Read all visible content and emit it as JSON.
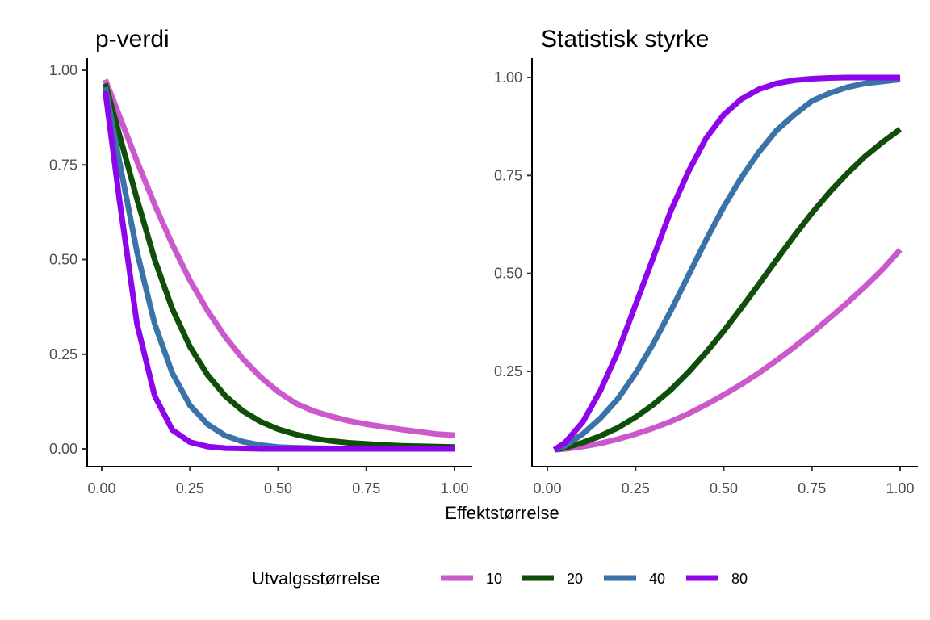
{
  "chart_data": [
    {
      "type": "line",
      "title": "p-verdi",
      "xlim": [
        0,
        1
      ],
      "ylim": [
        0,
        1
      ],
      "x_ticks": [
        "0.00",
        "0.25",
        "0.50",
        "0.75",
        "1.00"
      ],
      "y_ticks": [
        "0.00",
        "0.25",
        "0.50",
        "0.75",
        "1.00"
      ],
      "series": [
        {
          "name": "10",
          "color": "#CC59CC",
          "x": [
            0.01,
            0.05,
            0.1,
            0.15,
            0.2,
            0.25,
            0.3,
            0.35,
            0.4,
            0.45,
            0.5,
            0.55,
            0.6,
            0.65,
            0.7,
            0.75,
            0.8,
            0.85,
            0.9,
            0.95,
            1.0
          ],
          "values": [
            0.975,
            0.88,
            0.76,
            0.645,
            0.54,
            0.445,
            0.365,
            0.296,
            0.238,
            0.19,
            0.151,
            0.12,
            0.1,
            0.086,
            0.074,
            0.065,
            0.058,
            0.051,
            0.045,
            0.039,
            0.036
          ]
        },
        {
          "name": "20",
          "color": "#0F4F0A",
          "x": [
            0.01,
            0.05,
            0.1,
            0.15,
            0.2,
            0.25,
            0.3,
            0.35,
            0.4,
            0.45,
            0.5,
            0.55,
            0.6,
            0.65,
            0.7,
            0.75,
            0.8,
            0.85,
            0.9,
            0.95,
            1.0
          ],
          "values": [
            0.965,
            0.83,
            0.66,
            0.5,
            0.37,
            0.27,
            0.195,
            0.14,
            0.1,
            0.072,
            0.052,
            0.038,
            0.028,
            0.021,
            0.016,
            0.013,
            0.01,
            0.008,
            0.007,
            0.006,
            0.005
          ]
        },
        {
          "name": "40",
          "color": "#3A73A8",
          "x": [
            0.01,
            0.05,
            0.1,
            0.15,
            0.2,
            0.25,
            0.3,
            0.35,
            0.4,
            0.45,
            0.5,
            0.55,
            0.6,
            0.65,
            0.7,
            0.75,
            0.8,
            0.85,
            0.9,
            0.95,
            1.0
          ],
          "values": [
            0.955,
            0.76,
            0.52,
            0.33,
            0.2,
            0.115,
            0.065,
            0.035,
            0.019,
            0.01,
            0.005,
            0.003,
            0.002,
            0.001,
            0.001,
            0.0,
            0.0,
            0.0,
            0.0,
            0.0,
            0.0
          ]
        },
        {
          "name": "80",
          "color": "#8E05EB",
          "x": [
            0.01,
            0.05,
            0.1,
            0.15,
            0.2,
            0.25,
            0.3,
            0.35,
            0.4,
            0.45,
            0.5,
            0.55,
            0.6,
            0.65,
            0.7,
            0.75,
            0.8,
            0.85,
            0.9,
            0.95,
            1.0
          ],
          "values": [
            0.945,
            0.66,
            0.33,
            0.14,
            0.05,
            0.018,
            0.006,
            0.002,
            0.001,
            0.0,
            0.0,
            0.0,
            0.0,
            0.0,
            0.0,
            0.0,
            0.0,
            0.0,
            0.0,
            0.0,
            0.0
          ]
        }
      ]
    },
    {
      "type": "line",
      "title": "Statistisk styrke",
      "xlim": [
        0,
        1
      ],
      "ylim": [
        0.05,
        1
      ],
      "x_ticks": [
        "0.00",
        "0.25",
        "0.50",
        "0.75",
        "1.00"
      ],
      "y_ticks": [
        "0.25",
        "0.50",
        "0.75",
        "1.00"
      ],
      "series": [
        {
          "name": "10",
          "color": "#CC59CC",
          "x": [
            0.02,
            0.05,
            0.1,
            0.15,
            0.2,
            0.25,
            0.3,
            0.35,
            0.4,
            0.45,
            0.5,
            0.55,
            0.6,
            0.65,
            0.7,
            0.75,
            0.8,
            0.85,
            0.9,
            0.95,
            1.0
          ],
          "values": [
            0.05,
            0.052,
            0.058,
            0.066,
            0.077,
            0.09,
            0.105,
            0.122,
            0.142,
            0.165,
            0.19,
            0.217,
            0.246,
            0.278,
            0.312,
            0.348,
            0.386,
            0.425,
            0.466,
            0.51,
            0.56
          ]
        },
        {
          "name": "20",
          "color": "#0F4F0A",
          "x": [
            0.02,
            0.05,
            0.1,
            0.15,
            0.2,
            0.25,
            0.3,
            0.35,
            0.4,
            0.45,
            0.5,
            0.55,
            0.6,
            0.65,
            0.7,
            0.75,
            0.8,
            0.85,
            0.9,
            0.95,
            1.0
          ],
          "values": [
            0.05,
            0.055,
            0.068,
            0.085,
            0.106,
            0.133,
            0.165,
            0.203,
            0.248,
            0.298,
            0.353,
            0.412,
            0.473,
            0.535,
            0.596,
            0.654,
            0.707,
            0.755,
            0.798,
            0.835,
            0.868
          ]
        },
        {
          "name": "40",
          "color": "#3A73A8",
          "x": [
            0.02,
            0.05,
            0.1,
            0.15,
            0.2,
            0.25,
            0.3,
            0.35,
            0.4,
            0.45,
            0.5,
            0.55,
            0.6,
            0.65,
            0.7,
            0.75,
            0.8,
            0.85,
            0.9,
            0.95,
            1.0
          ],
          "values": [
            0.05,
            0.06,
            0.09,
            0.13,
            0.18,
            0.245,
            0.32,
            0.405,
            0.495,
            0.585,
            0.67,
            0.745,
            0.81,
            0.865,
            0.905,
            0.94,
            0.96,
            0.975,
            0.985,
            0.99,
            0.995
          ]
        },
        {
          "name": "80",
          "color": "#8E05EB",
          "x": [
            0.02,
            0.05,
            0.1,
            0.15,
            0.2,
            0.25,
            0.3,
            0.35,
            0.4,
            0.45,
            0.5,
            0.55,
            0.6,
            0.65,
            0.7,
            0.75,
            0.8,
            0.85,
            0.9,
            0.95,
            1.0
          ],
          "values": [
            0.05,
            0.068,
            0.12,
            0.2,
            0.3,
            0.42,
            0.54,
            0.66,
            0.76,
            0.845,
            0.905,
            0.945,
            0.97,
            0.985,
            0.993,
            0.997,
            0.999,
            1.0,
            1.0,
            1.0,
            1.0
          ]
        }
      ]
    }
  ],
  "shared": {
    "xlabel": "Effektstørrelse",
    "legend_title": "Utvalgsstørrelse",
    "legend_position": "bottom"
  }
}
